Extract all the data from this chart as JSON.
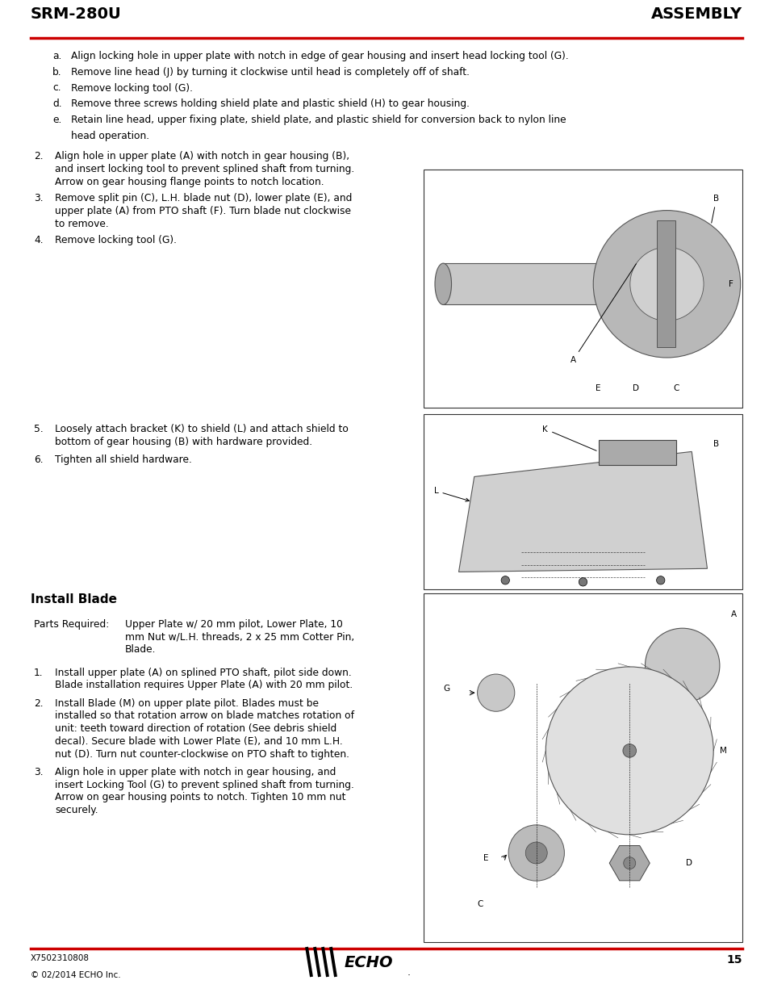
{
  "page_title_left": "SRM-280U",
  "page_title_right": "ASSEMBLY",
  "header_line_color": "#cc0000",
  "background_color": "#ffffff",
  "text_color": "#000000",
  "footer_left": "X7502310808",
  "footer_copyright": "© 02/2014 ECHO Inc.",
  "footer_page": "15",
  "body_font_size": 8.8,
  "title_font_size": 14,
  "section_header_font_size": 11,
  "install_blade_header": "Install Blade",
  "parts_required_label": "Parts Required:",
  "parts_required_text": "Upper Plate w/ 20 mm pilot, Lower Plate, 10\nmm Nut w/L.H. threads, 2 x 25 mm Cotter Pin,\nBlade.",
  "sub_items_a": "Align locking hole in upper plate with notch in edge of gear housing and insert head locking tool (G).",
  "sub_items_b": "Remove line head (J) by turning it clockwise until head is completely off of shaft.",
  "sub_items_c": "Remove locking tool (G).",
  "sub_items_d": "Remove three screws holding shield plate and plastic shield (H) to gear housing.",
  "sub_items_e1": "Retain line head, upper fixing plate, shield plate, and plastic shield for conversion back to nylon line",
  "sub_items_e2": "head operation.",
  "item2_line1": "Align hole in upper plate (A) with notch in gear housing (B),",
  "item2_line2": "and insert locking tool to prevent splined shaft from turning.",
  "item2_line3": "Arrow on gear housing flange points to notch location.",
  "item3_line1": "Remove split pin (C), L.H. blade nut (D), lower plate (E), and",
  "item3_line2": "upper plate (A) from PTO shaft (F). Turn blade nut clockwise",
  "item3_line3": "to remove.",
  "item4_line1": "Remove locking tool (G).",
  "item5_line1": "Loosely attach bracket (K) to shield (L) and attach shield to",
  "item5_line2": "bottom of gear housing (B) with hardware provided.",
  "item6_line1": "Tighten all shield hardware.",
  "b1_line1": "Install upper plate (A) on splined PTO shaft, pilot side down.",
  "b1_line2": "Blade installation requires Upper Plate (A) with 20 mm pilot.",
  "b2_line1": "Install Blade (M) on upper plate pilot. Blades must be",
  "b2_line2": "installed so that rotation arrow on blade matches rotation of",
  "b2_line3": "unit: teeth toward direction of rotation (See debris shield",
  "b2_line4": "decal). Secure blade with Lower Plate (E), and 10 mm L.H.",
  "b2_line5": "nut (D). Turn nut counter-clockwise on PTO shaft to tighten.",
  "b3_line1": "Align hole in upper plate with notch in gear housing, and",
  "b3_line2": "insert Locking Tool (G) to prevent splined shaft from turning.",
  "b3_line3": "Arrow on gear housing points to notch. Tighten 10 mm nut",
  "b3_line4": "securely."
}
